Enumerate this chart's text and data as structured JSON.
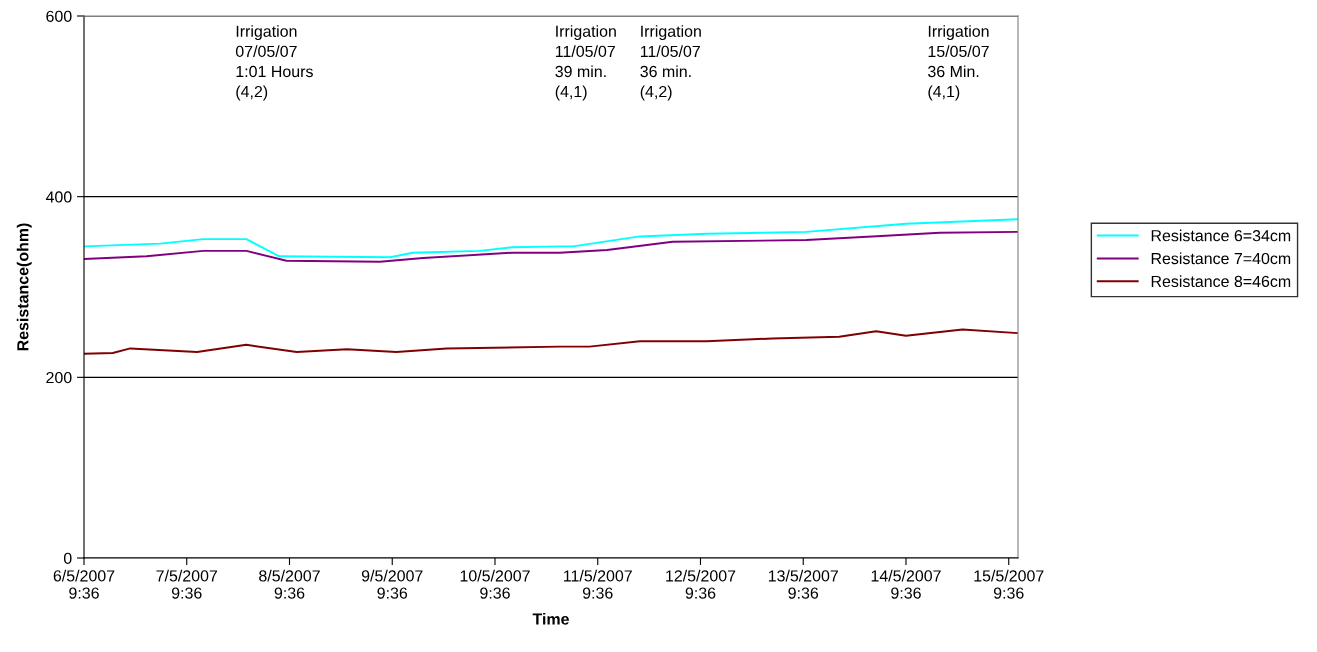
{
  "chart_data": {
    "type": "line",
    "xlabel": "Time",
    "ylabel": "Resistance(ohm)",
    "xlim": [
      "2007-05-06T09:36",
      "2007-05-15T11:46"
    ],
    "ylim": [
      0,
      600
    ],
    "yticks": [
      0,
      200,
      400,
      600
    ],
    "xticks": [
      {
        "value": "2007-05-06T09:36",
        "label": "6/5/2007\n9:36"
      },
      {
        "value": "2007-05-07T09:36",
        "label": "7/5/2007\n9:36"
      },
      {
        "value": "2007-05-08T09:36",
        "label": "8/5/2007\n9:36"
      },
      {
        "value": "2007-05-09T09:36",
        "label": "9/5/2007\n9:36"
      },
      {
        "value": "2007-05-10T09:36",
        "label": "10/5/2007\n9:36"
      },
      {
        "value": "2007-05-11T09:36",
        "label": "11/5/2007\n9:36"
      },
      {
        "value": "2007-05-12T09:36",
        "label": "12/5/2007\n9:36"
      },
      {
        "value": "2007-05-13T09:36",
        "label": "13/5/2007\n9:36"
      },
      {
        "value": "2007-05-14T09:36",
        "label": "14/5/2007\n9:36"
      },
      {
        "value": "2007-05-15T09:36",
        "label": "15/5/2007\n9:36"
      }
    ],
    "grid": "y",
    "legend": "right",
    "marker": "none",
    "line_style": "solid",
    "series": [
      {
        "name": "Resistance 6=34cm",
        "color": "#00ffff",
        "x": [
          "2007-05-06T09:36",
          "2007-05-07T03:24",
          "2007-05-07T13:26",
          "2007-05-07T23:31",
          "2007-05-08T07:12",
          "2007-05-09T09:07",
          "2007-05-09T14:24",
          "2007-05-10T06:00",
          "2007-05-10T13:41",
          "2007-05-11T00:43",
          "2007-05-11T03:50",
          "2007-05-11T19:26",
          "2007-05-12T11:02",
          "2007-05-13T10:19",
          "2007-05-14T09:36",
          "2007-05-15T11:31"
        ],
        "values": [
          345,
          348,
          353,
          353,
          334,
          333,
          338,
          340,
          344,
          345,
          345,
          356,
          359,
          361,
          370,
          375
        ]
      },
      {
        "name": "Resistance 7=40cm",
        "color": "#800080",
        "x": [
          "2007-05-06T09:36",
          "2007-05-07T00:12",
          "2007-05-07T13:26",
          "2007-05-07T23:31",
          "2007-05-08T08:53",
          "2007-05-09T06:43",
          "2007-05-09T16:48",
          "2007-05-10T13:41",
          "2007-05-11T00:43",
          "2007-05-11T11:46",
          "2007-05-12T03:07",
          "2007-05-13T10:19",
          "2007-05-14T01:41",
          "2007-05-14T17:31",
          "2007-05-15T11:31"
        ],
        "values": [
          331,
          334,
          340,
          340,
          329,
          328,
          332,
          338,
          338,
          341,
          350,
          352,
          356,
          360,
          361
        ]
      },
      {
        "name": "Resistance 8=46cm",
        "color": "#800000",
        "x": [
          "2007-05-06T09:36",
          "2007-05-06T16:20",
          "2007-05-06T20:24",
          "2007-05-07T12:00",
          "2007-05-07T23:31",
          "2007-05-08T11:17",
          "2007-05-08T23:02",
          "2007-05-09T10:34",
          "2007-05-09T22:19",
          "2007-05-11T00:43",
          "2007-05-11T07:41",
          "2007-05-11T19:26",
          "2007-05-12T11:02",
          "2007-05-13T02:24",
          "2007-05-13T18:00",
          "2007-05-14T02:38",
          "2007-05-14T09:36",
          "2007-05-14T22:48",
          "2007-05-15T11:31"
        ],
        "values": [
          226,
          227,
          232,
          228,
          236,
          228,
          231,
          228,
          232,
          234,
          234,
          240,
          240,
          243,
          245,
          251,
          246,
          253,
          249
        ]
      }
    ],
    "annotations": [
      "Irrigation\n07/05/07\n1:01 Hours\n(4,2)",
      "Irrigation\n11/05/07\n39 min.\n(4,1)",
      "Irrigation\n11/05/07\n36 min.\n(4,2)",
      "Irrigation\n15/05/07\n36 Min.\n(4,1)"
    ]
  }
}
